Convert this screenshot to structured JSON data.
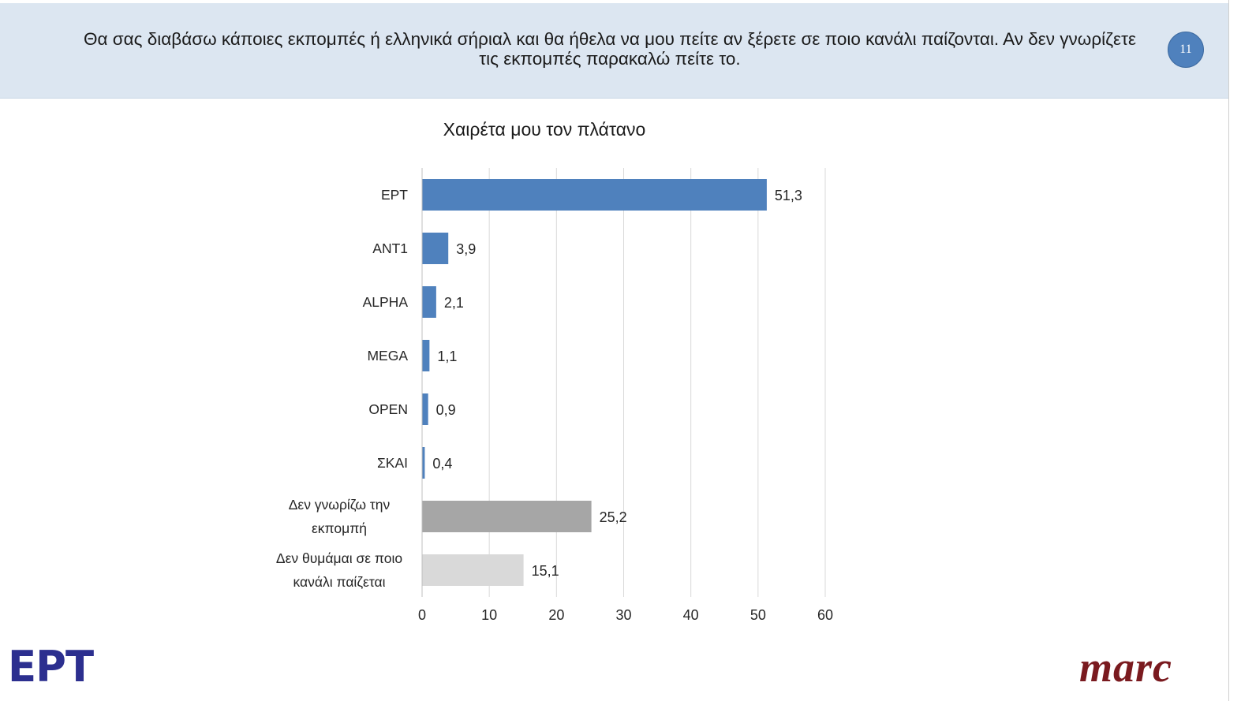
{
  "header": {
    "question": "Θα σας διαβάσω κάποιες εκπομπές ή ελληνικά σήριαλ και θα ήθελα να μου πείτε αν ξέρετε σε ποιο κανάλι παίζονται. Αν δεν γνωρίζετε τις εκπομπές παρακαλώ πείτε το.",
    "page_number": "11"
  },
  "logos": {
    "left": "ΕΡΤ",
    "right": "marc"
  },
  "chart_data": {
    "type": "bar",
    "orientation": "horizontal",
    "title": "Χαιρέτα μου τον πλάτανο",
    "categories": [
      "ΕΡΤ",
      "ΑΝΤ1",
      "ALPHA",
      "MEGA",
      "OPEN",
      "ΣΚΑΙ",
      "Δεν γνωρίζω την εκπομπή",
      "Δεν θυμάμαι σε ποιο κανάλι παίζεται"
    ],
    "values": [
      51.3,
      3.9,
      2.1,
      1.1,
      0.9,
      0.4,
      25.2,
      15.1
    ],
    "value_labels": [
      "51,3",
      "3,9",
      "2,1",
      "1,1",
      "0,9",
      "0,4",
      "25,2",
      "15,1"
    ],
    "bar_colors": [
      "#4f81bd",
      "#4f81bd",
      "#4f81bd",
      "#4f81bd",
      "#4f81bd",
      "#4f81bd",
      "#a6a6a6",
      "#d9d9d9"
    ],
    "xlim": [
      0,
      60
    ],
    "xticks": [
      "0",
      "10",
      "20",
      "30",
      "40",
      "50",
      "60"
    ],
    "xlabel": "",
    "ylabel": "",
    "grid": "vertical",
    "legend": "none"
  }
}
